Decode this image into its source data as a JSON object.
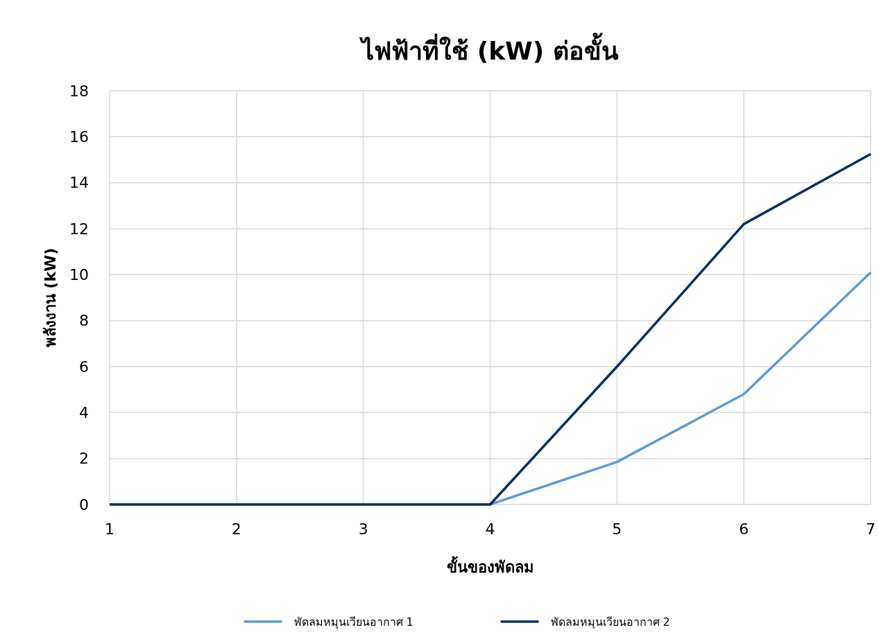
{
  "chart_data": {
    "type": "line",
    "title": "ไฟฟ้าที่ใช้ (kW) ต่อขั้น",
    "xlabel": "ขั้นของพัดลม",
    "ylabel": "พลังงาน (kW)",
    "x": [
      1,
      2,
      3,
      4,
      5,
      6,
      7
    ],
    "series": [
      {
        "name": "พัดลมหมุนเวียนอากาศ 1",
        "color": "#5b9bd5",
        "values": [
          null,
          null,
          null,
          0,
          1.85,
          4.8,
          10.1
        ]
      },
      {
        "name": "พัดลมหมุนเวียนอากาศ 2",
        "color": "#002f5e",
        "values": [
          0,
          0,
          0,
          0,
          6.0,
          12.2,
          15.25
        ]
      }
    ],
    "xlim": [
      1,
      7
    ],
    "xticks": [
      1,
      2,
      3,
      4,
      5,
      6,
      7
    ],
    "ylim": [
      0,
      18
    ],
    "yticks": [
      0,
      2,
      4,
      6,
      8,
      10,
      12,
      14,
      16,
      18
    ],
    "grid": true,
    "legend": "bottom",
    "line_style": "solid"
  }
}
